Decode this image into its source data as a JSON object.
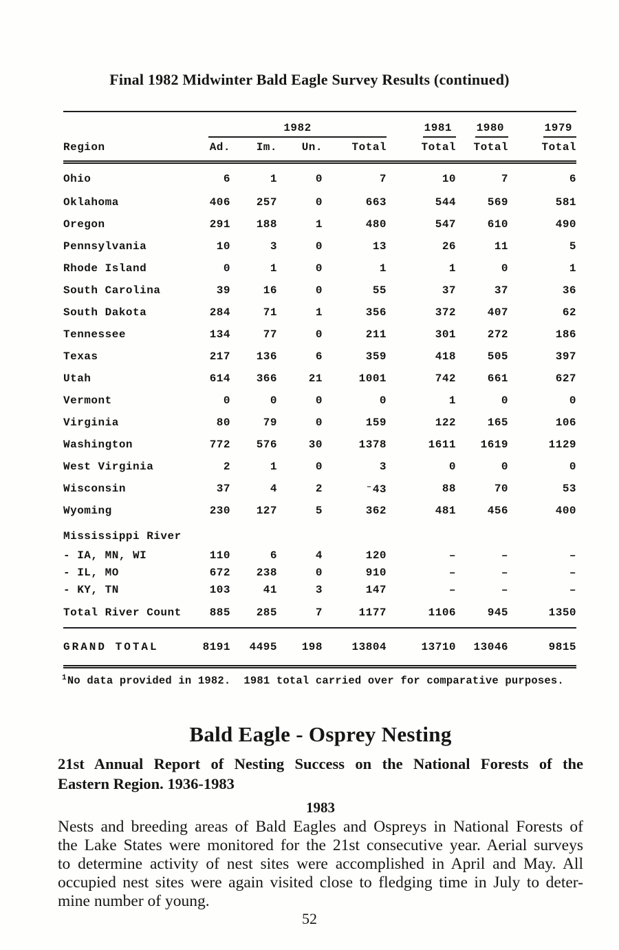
{
  "page": {
    "title": "Final 1982 Midwinter Bald Eagle Survey Results (continued)",
    "page_number": "52"
  },
  "table": {
    "header": {
      "region": "Region",
      "group_1982": "1982",
      "years": [
        "1981",
        "1980",
        "1979"
      ],
      "cols_1982": [
        "Ad.",
        "Im.",
        "Un.",
        "Total"
      ],
      "year_total_label": "Total"
    },
    "rows": [
      {
        "type": "state",
        "region": "Ohio",
        "values": [
          "6",
          "1",
          "0",
          "7",
          "10",
          "7",
          "6"
        ]
      },
      {
        "type": "state",
        "region": "Oklahoma",
        "values": [
          "406",
          "257",
          "0",
          "663",
          "544",
          "569",
          "581"
        ]
      },
      {
        "type": "state",
        "region": "Oregon",
        "values": [
          "291",
          "188",
          "1",
          "480",
          "547",
          "610",
          "490"
        ]
      },
      {
        "type": "state",
        "region": "Pennsylvania",
        "values": [
          "10",
          "3",
          "0",
          "13",
          "26",
          "11",
          "5"
        ]
      },
      {
        "type": "state",
        "region": "Rhode Island",
        "values": [
          "0",
          "1",
          "0",
          "1",
          "1",
          "0",
          "1"
        ]
      },
      {
        "type": "state",
        "region": "South Carolina",
        "values": [
          "39",
          "16",
          "0",
          "55",
          "37",
          "37",
          "36"
        ]
      },
      {
        "type": "state",
        "region": "South Dakota",
        "values": [
          "284",
          "71",
          "1",
          "356",
          "372",
          "407",
          "62"
        ]
      },
      {
        "type": "state",
        "region": "Tennessee",
        "values": [
          "134",
          "77",
          "0",
          "211",
          "301",
          "272",
          "186"
        ]
      },
      {
        "type": "state",
        "region": "Texas",
        "values": [
          "217",
          "136",
          "6",
          "359",
          "418",
          "505",
          "397"
        ]
      },
      {
        "type": "state",
        "region": "Utah",
        "values": [
          "614",
          "366",
          "21",
          "1001",
          "742",
          "661",
          "627"
        ]
      },
      {
        "type": "state",
        "region": "Vermont",
        "values": [
          "0",
          "0",
          "0",
          "0",
          "1",
          "0",
          "0"
        ]
      },
      {
        "type": "state",
        "region": "Virginia",
        "values": [
          "80",
          "79",
          "0",
          "159",
          "122",
          "165",
          "106"
        ]
      },
      {
        "type": "state",
        "region": "Washington",
        "values": [
          "772",
          "576",
          "30",
          "1378",
          "1611",
          "1619",
          "1129"
        ]
      },
      {
        "type": "state",
        "region": "West Virginia",
        "values": [
          "2",
          "1",
          "0",
          "3",
          "0",
          "0",
          "0"
        ]
      },
      {
        "type": "state",
        "region": "Wisconsin",
        "values": [
          "37",
          "4",
          "2",
          "⁻43",
          "88",
          "70",
          "53"
        ]
      },
      {
        "type": "state",
        "region": "Wyoming",
        "values": [
          "230",
          "127",
          "5",
          "362",
          "481",
          "456",
          "400"
        ]
      },
      {
        "type": "group",
        "region": "Mississippi River",
        "values": [
          "",
          "",
          "",
          "",
          "",
          "",
          ""
        ]
      },
      {
        "type": "sub",
        "region": "- IA, MN, WI",
        "values": [
          "110",
          "6",
          "4",
          "120",
          "–",
          "–",
          "–"
        ]
      },
      {
        "type": "sub",
        "region": "- IL, MO",
        "values": [
          "672",
          "238",
          "0",
          "910",
          "–",
          "–",
          "–"
        ]
      },
      {
        "type": "sub",
        "region": "- KY, TN",
        "values": [
          "103",
          "41",
          "3",
          "147",
          "–",
          "–",
          "–"
        ]
      },
      {
        "type": "total",
        "region": "Total River Count",
        "values": [
          "885",
          "285",
          "7",
          "1177",
          "1106",
          "945",
          "1350"
        ]
      },
      {
        "type": "grand",
        "region": "GRAND TOTAL",
        "values": [
          "8191",
          "4495",
          "198",
          "13804",
          "13710",
          "13046",
          "9815"
        ]
      }
    ],
    "footnote_sup": "1",
    "footnote": "No data provided in 1982.  1981 total carried over for comparative purposes."
  },
  "article": {
    "heading": "Bald Eagle - Osprey Nesting",
    "subheading_lines": [
      "21st Annual Report of Nesting Success on the National Forests of the",
      "Eastern Region. 1936-1983"
    ],
    "year_heading": "1983",
    "body_lines": [
      "Nests and breeding areas of Bald Eagles and Ospreys in National Forests of",
      "the Lake States were monitored for the 21st consecutive year. Aerial surveys",
      "to determine activity of nest sites were accomplished in April and May. All",
      "occupied nest sites were again visited close to fledging time in July to deter-",
      "mine number of young."
    ]
  }
}
